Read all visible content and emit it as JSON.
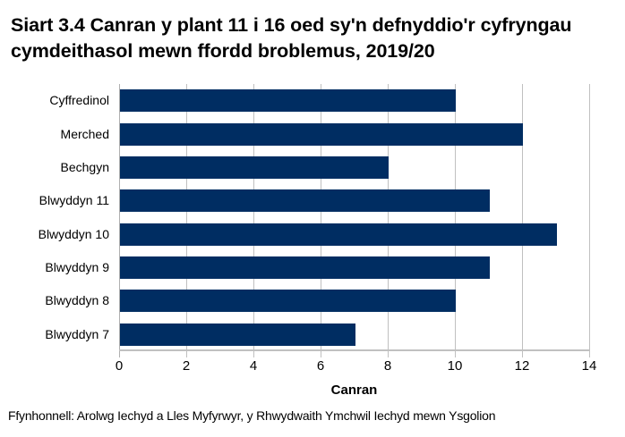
{
  "title": "Siart 3.4 Canran y plant 11 i 16 oed sy'n defnyddio'r cyfryngau cymdeithasol mewn ffordd broblemus, 2019/20",
  "source": "Ffynhonnell: Arolwg Iechyd a Lles Myfyrwyr, y Rhwydwaith Ymchwil Iechyd mewn Ysgolion",
  "colors": {
    "bar": "#002D62",
    "grid": "#C0C0C0"
  },
  "chart_data": {
    "type": "bar",
    "orientation": "horizontal",
    "title": "Siart 3.4 Canran y plant 11 i 16 oed sy'n defnyddio'r cyfryngau cymdeithasol mewn ffordd broblemus, 2019/20",
    "categories": [
      "Cyffredinol",
      "Merched",
      "Bechgyn",
      "Blwyddyn 11",
      "Blwyddyn 10",
      "Blwyddyn 9",
      "Blwyddyn 8",
      "Blwyddyn 7"
    ],
    "values": [
      10,
      12,
      8,
      11,
      13,
      11,
      10,
      7
    ],
    "xlabel": "Canran",
    "ylabel": "",
    "xlim": [
      0,
      14
    ],
    "xticks": [
      "0",
      "2",
      "4",
      "6",
      "8",
      "10",
      "12",
      "14"
    ],
    "grid": true,
    "legend": null
  }
}
